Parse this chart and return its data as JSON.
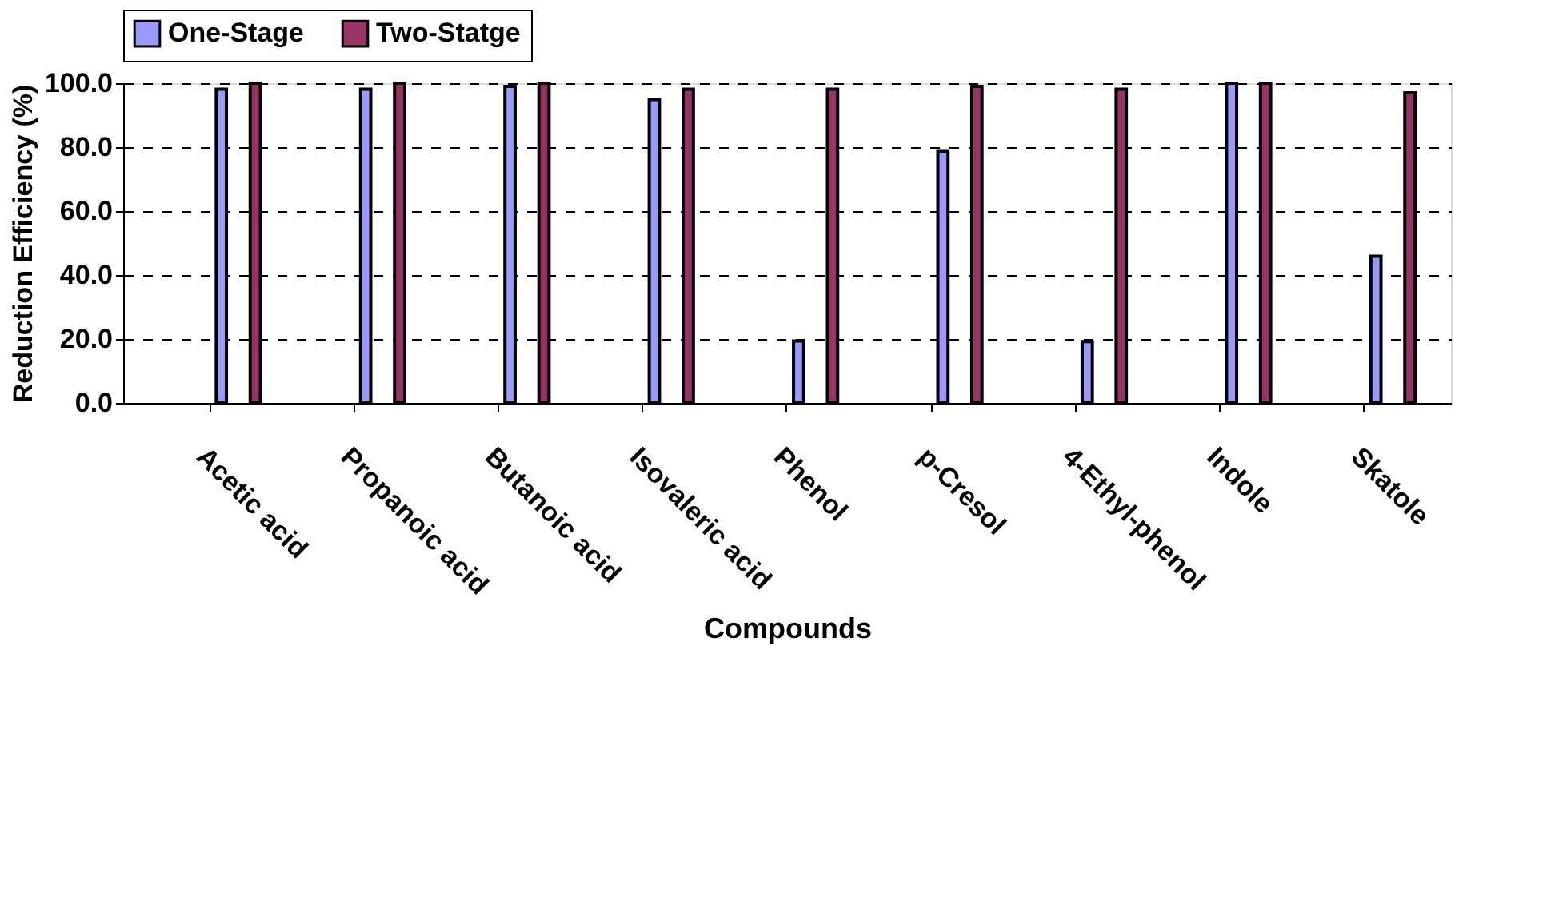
{
  "chart_data": {
    "type": "bar",
    "xlabel": "Compounds",
    "ylabel": "Reduction Efficiency (%)",
    "categories": [
      "Acetic acid",
      "Propanoic acid",
      "Butanoic acid",
      "Isovaleric acid",
      "Phenol",
      "p-Cresol",
      "4-Ethyl-phenol",
      "Indole",
      "Skatole"
    ],
    "series": [
      {
        "name": "One-Stage",
        "color": "#9999ff",
        "values": [
          98.1,
          98.1,
          99.0,
          94.9,
          19.4,
          78.6,
          19.2,
          100,
          45.9
        ]
      },
      {
        "name": "Two-Statge",
        "color": "#993366",
        "values": [
          100,
          100,
          100,
          98.1,
          98.1,
          99.0,
          98.1,
          100,
          97.0
        ]
      }
    ],
    "ylim": [
      0,
      100
    ],
    "yticks": [
      {
        "value": 0,
        "label": "0.0"
      },
      {
        "value": 20,
        "label": "20.0"
      },
      {
        "value": 40,
        "label": "40.0"
      },
      {
        "value": 60,
        "label": "60.0"
      },
      {
        "value": 80,
        "label": "80.0"
      },
      {
        "value": 100,
        "label": "100.0"
      }
    ],
    "grid": "y",
    "legend": "top"
  }
}
